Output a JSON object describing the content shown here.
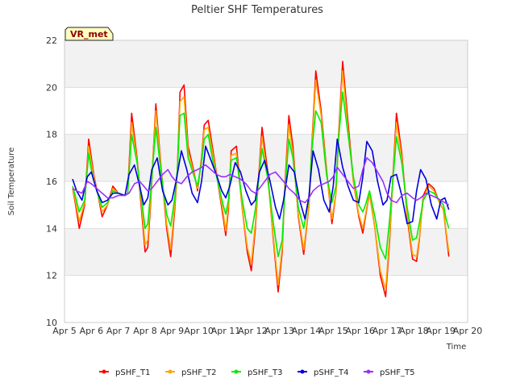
{
  "chart_data": {
    "type": "line",
    "title": "Peltier SHF Temperatures",
    "xlabel": "Time",
    "ylabel": "Soil Temperature",
    "badge": "VR_met",
    "x_ticks": [
      "Apr 5",
      "Apr 6",
      "Apr 7",
      "Apr 8",
      "Apr 9",
      "Apr 10",
      "Apr 11",
      "Apr 12",
      "Apr 13",
      "Apr 14",
      "Apr 15",
      "Apr 16",
      "Apr 17",
      "Apr 18",
      "Apr 19",
      "Apr 20"
    ],
    "y_ticks": [
      "10",
      "12",
      "14",
      "16",
      "18",
      "20",
      "22"
    ],
    "ylim": [
      10,
      22
    ],
    "grid": true,
    "legend_position": "bottom",
    "x_unit": "day of April",
    "series": [
      {
        "name": "pSHF_T1",
        "color": "#ff0000",
        "x": [
          5.3,
          5.4,
          5.55,
          5.75,
          5.9,
          6.0,
          6.1,
          6.25,
          6.4,
          6.6,
          6.8,
          7.0,
          7.25,
          7.35,
          7.5,
          7.7,
          7.85,
          8.0,
          8.1,
          8.2,
          8.4,
          8.6,
          8.8,
          8.95,
          9.1,
          9.2,
          9.3,
          9.45,
          9.6,
          9.8,
          9.95,
          10.1,
          10.2,
          10.35,
          10.5,
          10.7,
          10.9,
          11.0,
          11.1,
          11.2,
          11.4,
          11.6,
          11.8,
          11.95,
          12.1,
          12.2,
          12.35,
          12.55,
          12.75,
          12.95,
          13.1,
          13.2,
          13.35,
          13.5,
          13.7,
          13.9,
          14.1,
          14.2,
          14.35,
          14.55,
          14.75,
          14.95,
          15.1,
          15.2,
          15.35,
          15.55,
          15.75,
          15.95,
          16.1,
          16.2,
          16.35,
          16.55,
          16.75,
          16.95,
          17.1,
          17.2,
          17.35,
          17.55,
          17.75,
          17.95,
          18.1,
          18.2,
          18.35,
          18.55,
          18.75,
          18.95,
          19.1,
          19.2,
          19.3
        ],
        "values": [
          15.7,
          15.1,
          14.0,
          15.0,
          17.8,
          17.0,
          16.2,
          15.4,
          14.5,
          15.0,
          15.8,
          15.5,
          15.4,
          15.5,
          18.9,
          17.0,
          15.0,
          13.0,
          13.2,
          15.0,
          19.3,
          16.5,
          14.0,
          12.8,
          14.8,
          16.5,
          19.8,
          20.1,
          17.5,
          16.5,
          15.6,
          17.0,
          18.4,
          18.6,
          17.5,
          16.0,
          14.5,
          13.7,
          14.8,
          17.3,
          17.5,
          15.0,
          13.0,
          12.2,
          14.0,
          15.8,
          18.3,
          16.5,
          13.8,
          11.3,
          13.0,
          15.8,
          18.8,
          17.5,
          14.5,
          12.9,
          15.0,
          17.5,
          20.7,
          19.0,
          16.5,
          14.2,
          15.5,
          18.0,
          21.1,
          18.5,
          16.0,
          14.5,
          13.8,
          14.5,
          15.5,
          14.0,
          12.0,
          11.1,
          13.5,
          15.8,
          18.9,
          17.2,
          14.5,
          12.7,
          12.6,
          13.5,
          15.4,
          15.9,
          15.7,
          15.1,
          14.8,
          13.8,
          12.8
        ]
      },
      {
        "name": "pSHF_T2",
        "color": "#ffa500",
        "x": [
          5.3,
          5.4,
          5.55,
          5.75,
          5.9,
          6.0,
          6.1,
          6.25,
          6.4,
          6.6,
          6.8,
          7.0,
          7.25,
          7.35,
          7.5,
          7.7,
          7.85,
          8.0,
          8.1,
          8.2,
          8.4,
          8.6,
          8.8,
          8.95,
          9.1,
          9.2,
          9.3,
          9.45,
          9.6,
          9.8,
          9.95,
          10.1,
          10.2,
          10.35,
          10.5,
          10.7,
          10.9,
          11.0,
          11.1,
          11.2,
          11.4,
          11.6,
          11.8,
          11.95,
          12.1,
          12.2,
          12.35,
          12.55,
          12.75,
          12.95,
          13.1,
          13.2,
          13.35,
          13.5,
          13.7,
          13.9,
          14.1,
          14.2,
          14.35,
          14.55,
          14.75,
          14.95,
          15.1,
          15.2,
          15.35,
          15.55,
          15.75,
          15.95,
          16.1,
          16.2,
          16.35,
          16.55,
          16.75,
          16.95,
          17.1,
          17.2,
          17.35,
          17.55,
          17.75,
          17.95,
          18.1,
          18.2,
          18.35,
          18.55,
          18.75,
          18.95,
          19.1,
          19.2,
          19.3
        ],
        "values": [
          15.7,
          15.2,
          14.3,
          15.1,
          17.5,
          16.8,
          16.1,
          15.4,
          14.7,
          15.0,
          15.7,
          15.5,
          15.4,
          15.5,
          18.5,
          16.9,
          15.2,
          13.3,
          13.5,
          15.2,
          19.0,
          16.4,
          14.2,
          13.1,
          15.0,
          16.5,
          19.4,
          19.6,
          17.3,
          16.4,
          15.7,
          16.9,
          18.2,
          18.3,
          17.3,
          16.0,
          14.7,
          13.9,
          15.0,
          17.1,
          17.2,
          15.0,
          13.2,
          12.5,
          14.2,
          15.8,
          17.9,
          16.3,
          13.9,
          11.6,
          13.2,
          15.7,
          18.4,
          17.2,
          14.6,
          13.1,
          15.0,
          17.4,
          20.3,
          18.8,
          16.4,
          14.4,
          15.5,
          17.9,
          20.7,
          18.2,
          16.0,
          14.6,
          14.0,
          14.6,
          15.5,
          14.0,
          12.2,
          11.4,
          13.7,
          15.8,
          18.5,
          17.0,
          14.6,
          12.9,
          12.8,
          13.6,
          15.3,
          15.8,
          15.6,
          15.1,
          14.8,
          13.9,
          13.0
        ]
      },
      {
        "name": "pSHF_T3",
        "color": "#00ee00",
        "x": [
          5.3,
          5.4,
          5.55,
          5.75,
          5.9,
          6.0,
          6.1,
          6.25,
          6.4,
          6.6,
          6.8,
          7.0,
          7.25,
          7.35,
          7.5,
          7.7,
          7.85,
          8.0,
          8.1,
          8.2,
          8.4,
          8.6,
          8.8,
          8.95,
          9.1,
          9.2,
          9.3,
          9.45,
          9.6,
          9.8,
          9.95,
          10.1,
          10.2,
          10.35,
          10.5,
          10.7,
          10.9,
          11.0,
          11.1,
          11.2,
          11.4,
          11.6,
          11.8,
          11.95,
          12.1,
          12.2,
          12.35,
          12.55,
          12.75,
          12.95,
          13.1,
          13.2,
          13.35,
          13.5,
          13.7,
          13.9,
          14.1,
          14.2,
          14.35,
          14.55,
          14.75,
          14.95,
          15.1,
          15.2,
          15.35,
          15.55,
          15.75,
          15.95,
          16.1,
          16.2,
          16.35,
          16.55,
          16.75,
          16.95,
          17.1,
          17.2,
          17.35,
          17.55,
          17.75,
          17.95,
          18.1,
          18.2,
          18.35,
          18.55,
          18.75,
          18.95,
          19.1,
          19.2,
          19.3
        ],
        "values": [
          15.8,
          15.4,
          14.7,
          15.2,
          17.2,
          16.5,
          16.0,
          15.4,
          14.9,
          15.1,
          15.6,
          15.5,
          15.4,
          15.5,
          18.0,
          16.8,
          15.4,
          14.0,
          14.2,
          15.5,
          18.3,
          16.3,
          14.6,
          14.1,
          15.3,
          16.5,
          18.8,
          18.9,
          17.0,
          16.3,
          15.8,
          16.8,
          17.8,
          18.0,
          17.0,
          16.0,
          15.0,
          14.6,
          15.2,
          16.9,
          17.0,
          15.3,
          14.0,
          13.8,
          14.8,
          15.8,
          17.4,
          16.2,
          14.4,
          12.8,
          13.5,
          15.6,
          17.8,
          17.0,
          14.9,
          14.0,
          15.3,
          17.3,
          19.0,
          18.5,
          16.3,
          15.1,
          15.8,
          17.8,
          19.8,
          18.0,
          16.2,
          15.0,
          14.7,
          15.0,
          15.6,
          14.5,
          13.2,
          12.7,
          14.4,
          15.8,
          17.9,
          16.8,
          14.9,
          13.5,
          13.6,
          14.2,
          15.2,
          15.6,
          15.5,
          15.2,
          15.0,
          14.4,
          14.0
        ]
      },
      {
        "name": "pSHF_T4",
        "color": "#0000dd",
        "x": [
          5.3,
          5.45,
          5.65,
          5.85,
          6.0,
          6.2,
          6.4,
          6.6,
          6.8,
          7.0,
          7.25,
          7.4,
          7.6,
          7.8,
          7.95,
          8.1,
          8.25,
          8.45,
          8.65,
          8.85,
          9.0,
          9.15,
          9.35,
          9.55,
          9.75,
          9.95,
          10.1,
          10.25,
          10.45,
          10.65,
          10.85,
          11.0,
          11.15,
          11.35,
          11.55,
          11.75,
          11.95,
          12.1,
          12.25,
          12.45,
          12.65,
          12.85,
          13.0,
          13.15,
          13.35,
          13.55,
          13.75,
          13.95,
          14.1,
          14.25,
          14.45,
          14.65,
          14.85,
          15.0,
          15.15,
          15.35,
          15.55,
          15.75,
          15.95,
          16.1,
          16.25,
          16.45,
          16.65,
          16.85,
          17.0,
          17.15,
          17.35,
          17.55,
          17.75,
          17.95,
          18.1,
          18.25,
          18.45,
          18.65,
          18.85,
          19.0,
          19.15,
          19.3
        ],
        "values": [
          16.1,
          15.6,
          15.2,
          16.2,
          16.4,
          15.6,
          15.1,
          15.2,
          15.5,
          15.5,
          15.4,
          16.3,
          16.7,
          15.8,
          15.0,
          15.3,
          16.5,
          17.0,
          15.6,
          15.0,
          15.2,
          16.0,
          17.3,
          16.5,
          15.5,
          15.1,
          16.0,
          17.5,
          16.9,
          16.3,
          15.6,
          15.3,
          15.8,
          16.8,
          16.4,
          15.6,
          15.0,
          15.2,
          16.4,
          16.9,
          16.0,
          14.9,
          14.4,
          15.2,
          16.7,
          16.4,
          15.2,
          14.4,
          15.4,
          17.3,
          16.5,
          15.2,
          14.7,
          15.8,
          17.8,
          16.6,
          15.8,
          15.2,
          15.1,
          16.2,
          17.7,
          17.3,
          16.0,
          15.0,
          15.2,
          16.2,
          16.3,
          15.4,
          14.2,
          14.3,
          15.6,
          16.5,
          16.1,
          15.0,
          14.4,
          15.2,
          15.3,
          14.8
        ]
      },
      {
        "name": "pSHF_T5",
        "color": "#9b30ff",
        "x": [
          5.3,
          5.45,
          5.65,
          5.85,
          6.0,
          6.2,
          6.4,
          6.6,
          6.8,
          7.0,
          7.25,
          7.4,
          7.6,
          7.8,
          7.95,
          8.1,
          8.25,
          8.45,
          8.65,
          8.85,
          9.0,
          9.15,
          9.35,
          9.55,
          9.75,
          9.95,
          10.1,
          10.25,
          10.45,
          10.65,
          10.85,
          11.0,
          11.15,
          11.35,
          11.55,
          11.75,
          11.95,
          12.1,
          12.25,
          12.45,
          12.65,
          12.85,
          13.0,
          13.15,
          13.35,
          13.55,
          13.75,
          13.95,
          14.1,
          14.25,
          14.45,
          14.65,
          14.85,
          15.0,
          15.15,
          15.35,
          15.55,
          15.75,
          15.95,
          16.1,
          16.25,
          16.45,
          16.65,
          16.85,
          17.0,
          17.15,
          17.35,
          17.55,
          17.75,
          17.95,
          18.1,
          18.25,
          18.45,
          18.65,
          18.85,
          19.0,
          19.15,
          19.3
        ],
        "values": [
          15.7,
          15.6,
          15.5,
          16.0,
          15.9,
          15.7,
          15.5,
          15.3,
          15.3,
          15.4,
          15.4,
          15.5,
          15.9,
          16.0,
          15.8,
          15.6,
          15.7,
          16.0,
          16.3,
          16.5,
          16.2,
          16.0,
          15.9,
          16.2,
          16.4,
          16.5,
          16.6,
          16.7,
          16.5,
          16.3,
          16.2,
          16.2,
          16.3,
          16.2,
          16.1,
          15.9,
          15.6,
          15.5,
          15.7,
          16.0,
          16.3,
          16.4,
          16.2,
          16.0,
          15.7,
          15.5,
          15.2,
          15.1,
          15.3,
          15.6,
          15.8,
          15.9,
          16.0,
          16.2,
          16.6,
          16.3,
          16.0,
          15.7,
          15.8,
          16.5,
          17.0,
          16.8,
          16.4,
          16.0,
          15.5,
          15.2,
          15.1,
          15.4,
          15.5,
          15.3,
          15.2,
          15.3,
          15.5,
          15.4,
          15.3,
          15.2,
          15.1,
          15.0
        ]
      }
    ]
  }
}
